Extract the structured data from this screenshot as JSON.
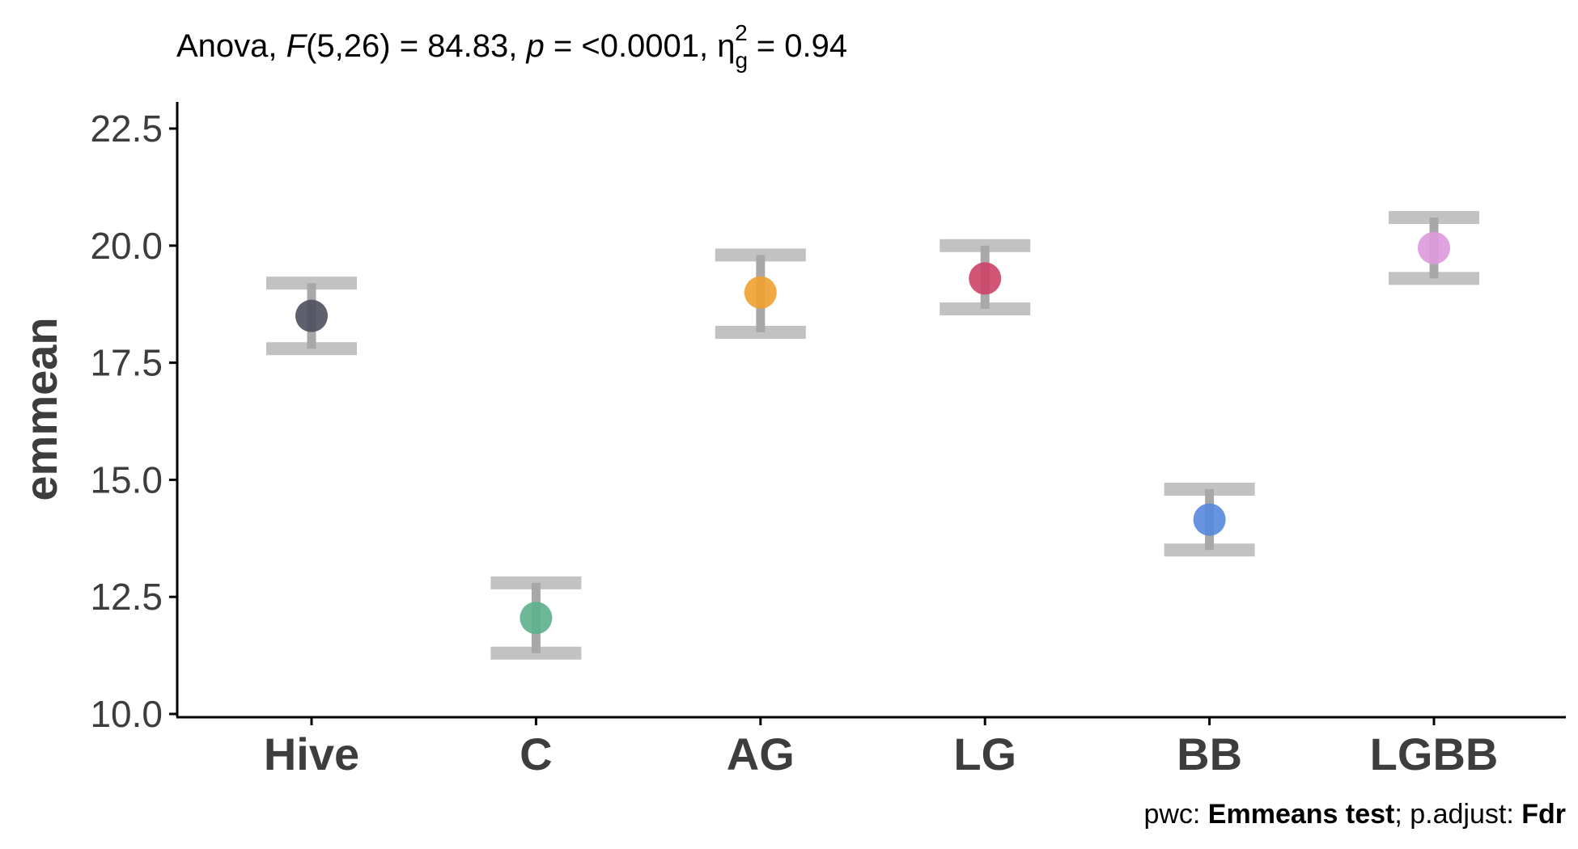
{
  "subtitle": {
    "prefix": "Anova, ",
    "f_symbol": "F",
    "f_args": "(5,26) = 84.83, ",
    "p_symbol": "p",
    "p_text": " = <0.0001, ",
    "eta_symbol": "η",
    "eta_sub": "g",
    "eta_sup": "2",
    "eta_text": " = 0.94"
  },
  "caption": {
    "pwc_label": "pwc: ",
    "pwc_value": "Emmeans test",
    "sep": "; p.adjust: ",
    "adjust_value": "Fdr"
  },
  "chart_data": {
    "type": "scatter",
    "ylabel": "emmean",
    "xlabel": "",
    "ylim": [
      10,
      22.5
    ],
    "yticks": [
      "10.0",
      "12.5",
      "15.0",
      "17.5",
      "20.0",
      "22.5"
    ],
    "grid": false,
    "categories": [
      "Hive",
      "C",
      "AG",
      "LG",
      "BB",
      "LGBB"
    ],
    "points": [
      {
        "category": "Hive",
        "emmean": 18.5,
        "lower": 17.8,
        "upper": 19.2,
        "color": "#4d4f5e"
      },
      {
        "category": "C",
        "emmean": 12.05,
        "lower": 11.3,
        "upper": 12.8,
        "color": "#5cb08c"
      },
      {
        "category": "AG",
        "emmean": 19.0,
        "lower": 18.15,
        "upper": 19.8,
        "color": "#f0a030"
      },
      {
        "category": "LG",
        "emmean": 19.3,
        "lower": 18.65,
        "upper": 20.0,
        "color": "#cc4466"
      },
      {
        "category": "BB",
        "emmean": 14.15,
        "lower": 13.5,
        "upper": 14.8,
        "color": "#5588dd"
      },
      {
        "category": "LGBB",
        "emmean": 19.95,
        "lower": 19.3,
        "upper": 20.6,
        "color": "#dd99dd"
      }
    ]
  }
}
